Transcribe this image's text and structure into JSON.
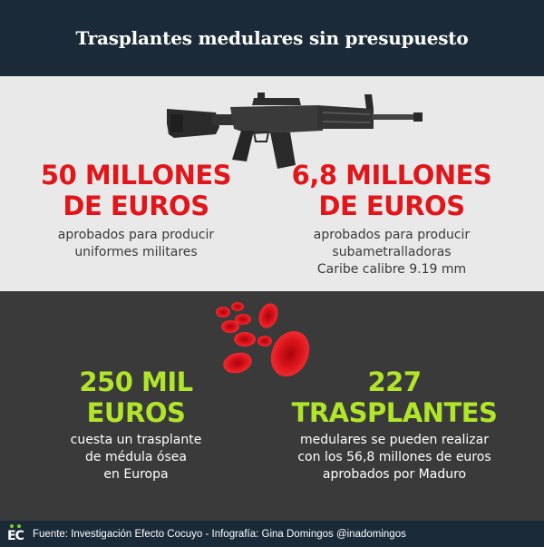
{
  "header": {
    "title": "Trasplantes medulares sin presupuesto"
  },
  "top": {
    "left": {
      "amount_line1": "50 MILLONES",
      "amount_line2": "DE EUROS",
      "desc_line1": "aprobados para producir",
      "desc_line2": "uniformes militares"
    },
    "right": {
      "amount_line1": "6,8 MILLONES",
      "amount_line2": "DE EUROS",
      "desc_line1": "aprobados para producir",
      "desc_line2": "subametralladoras",
      "desc_line3": "Caribe calibre 9.19 mm"
    },
    "image_icon": "rifle-icon"
  },
  "bottom": {
    "left": {
      "amount_line1": "250 MIL",
      "amount_line2": "EUROS",
      "desc_line1": "cuesta un trasplante",
      "desc_line2": "de médula ósea",
      "desc_line3": "en Europa"
    },
    "right": {
      "amount_line1": "227",
      "amount_line2": "TRASPLANTES",
      "desc_line1": "medulares se pueden realizar",
      "desc_line2": "con los 56,8 millones de euros",
      "desc_line3": "aprobados por Maduro"
    },
    "image_icon": "red-blood-cells-icon"
  },
  "footer": {
    "logo": "EC",
    "credits": "Fuente: Investigación Efecto Cocuyo - Infografía: Gina Domingos @inadomingos"
  },
  "colors": {
    "navy": "#1b2a38",
    "light_gray": "#e9e9e9",
    "dark_gray": "#3a3a3a",
    "red": "#e0161b",
    "green": "#b0e52a"
  }
}
